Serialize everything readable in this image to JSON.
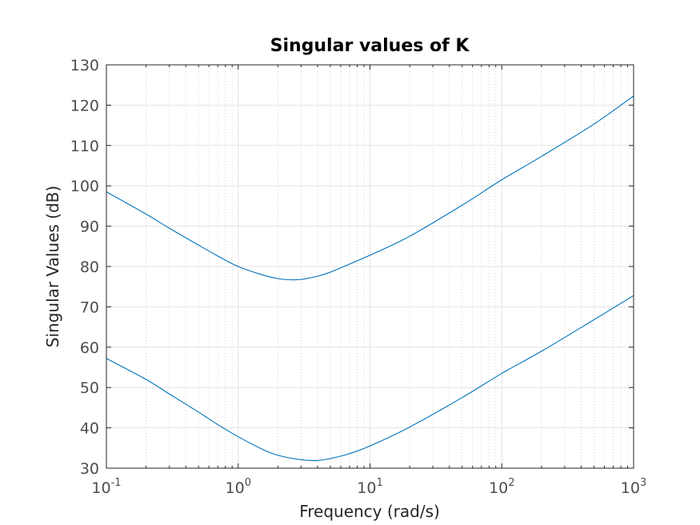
{
  "chart_data": {
    "type": "line",
    "title": "Singular values of K",
    "xlabel": "Frequency (rad/s)",
    "ylabel": "Singular Values (dB)",
    "xscale": "log",
    "xlim": [
      0.1,
      1000
    ],
    "ylim": [
      30,
      130
    ],
    "grid": true,
    "minor_grid": true,
    "legend": "none",
    "line_color": "#0072BD",
    "x_ticks": [
      {
        "base": "10",
        "exp": "-1",
        "value": 0.1
      },
      {
        "base": "10",
        "exp": "0",
        "value": 1
      },
      {
        "base": "10",
        "exp": "1",
        "value": 10
      },
      {
        "base": "10",
        "exp": "2",
        "value": 100
      },
      {
        "base": "10",
        "exp": "3",
        "value": 1000
      }
    ],
    "y_ticks": [
      "30",
      "40",
      "50",
      "60",
      "70",
      "80",
      "90",
      "100",
      "110",
      "120",
      "130"
    ],
    "series": [
      {
        "x": [
          0.1,
          0.2,
          0.3,
          0.5,
          0.7,
          1.0,
          1.5,
          2.0,
          2.5,
          3.0,
          4.0,
          5.0,
          7.0,
          10,
          20,
          50,
          100,
          200,
          500,
          1000
        ],
        "values": [
          98.5,
          93.0,
          89.5,
          85.3,
          82.6,
          80.0,
          78.0,
          77.0,
          76.7,
          76.8,
          77.6,
          78.6,
          80.6,
          82.8,
          87.5,
          95.2,
          101.5,
          107.3,
          115.3,
          122.3
        ]
      },
      {
        "x": [
          0.1,
          0.2,
          0.3,
          0.5,
          0.7,
          1.0,
          1.5,
          2.0,
          3.0,
          4.0,
          5.0,
          7.0,
          10,
          20,
          50,
          100,
          200,
          500,
          1000
        ],
        "values": [
          57.2,
          52.0,
          48.4,
          43.9,
          40.8,
          37.8,
          34.8,
          33.2,
          32.1,
          31.9,
          32.4,
          33.6,
          35.5,
          40.2,
          47.5,
          53.5,
          59.0,
          66.8,
          72.8
        ]
      }
    ]
  }
}
